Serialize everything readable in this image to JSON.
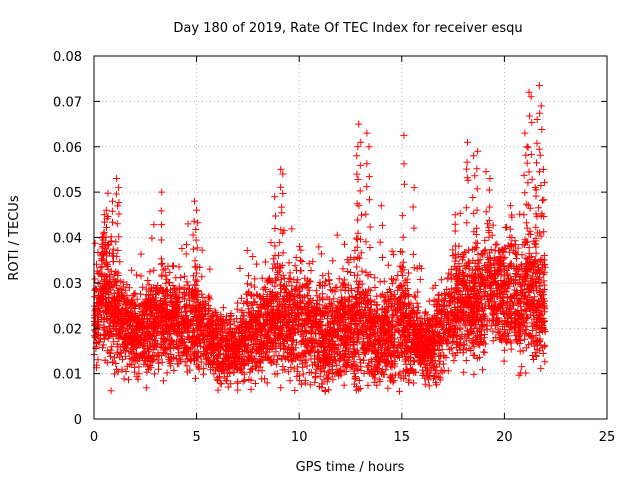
{
  "chart_data": {
    "type": "scatter",
    "title": "Day 180 of 2019, Rate Of TEC Index for receiver esqu",
    "xlabel": "GPS time / hours",
    "ylabel": "ROTI / TECUs",
    "xlim": [
      0,
      25
    ],
    "ylim": [
      0,
      0.08
    ],
    "xticks": [
      0,
      5,
      10,
      15,
      20,
      25
    ],
    "yticks": [
      0,
      0.01,
      0.02,
      0.03,
      0.04,
      0.05,
      0.06,
      0.07,
      0.08
    ],
    "xtick_labels": [
      "0",
      "5",
      "10",
      "15",
      "20",
      "25"
    ],
    "ytick_labels": [
      "0",
      "0.01",
      "0.02",
      "0.03",
      "0.04",
      "0.05",
      "0.06",
      "0.07",
      "0.08"
    ],
    "grid": true,
    "marker": "+",
    "series_color": "#ff0000",
    "data_range_hours": [
      0,
      22
    ],
    "envelope": {
      "hours": [
        0,
        0.5,
        1,
        1.5,
        2,
        2.5,
        3,
        3.5,
        4,
        4.5,
        5,
        5.5,
        6,
        6.5,
        7,
        7.5,
        8,
        8.5,
        9,
        9.5,
        10,
        10.5,
        11,
        11.5,
        12,
        12.5,
        13,
        13.5,
        14,
        14.5,
        15,
        15.5,
        16,
        16.5,
        17,
        17.5,
        18,
        18.5,
        19,
        19.5,
        20,
        20.5,
        21,
        21.5,
        22
      ],
      "center": [
        0.022,
        0.026,
        0.025,
        0.02,
        0.019,
        0.02,
        0.021,
        0.022,
        0.021,
        0.02,
        0.021,
        0.018,
        0.016,
        0.015,
        0.016,
        0.018,
        0.02,
        0.021,
        0.022,
        0.02,
        0.021,
        0.019,
        0.018,
        0.018,
        0.019,
        0.02,
        0.021,
        0.018,
        0.017,
        0.019,
        0.021,
        0.018,
        0.016,
        0.017,
        0.02,
        0.024,
        0.026,
        0.025,
        0.027,
        0.027,
        0.027,
        0.025,
        0.026,
        0.026,
        0.025
      ],
      "spread": [
        0.006,
        0.009,
        0.009,
        0.006,
        0.006,
        0.006,
        0.007,
        0.007,
        0.006,
        0.006,
        0.007,
        0.006,
        0.005,
        0.005,
        0.005,
        0.006,
        0.007,
        0.007,
        0.008,
        0.007,
        0.008,
        0.007,
        0.007,
        0.007,
        0.007,
        0.008,
        0.009,
        0.007,
        0.006,
        0.007,
        0.008,
        0.006,
        0.005,
        0.005,
        0.007,
        0.007,
        0.008,
        0.008,
        0.008,
        0.007,
        0.008,
        0.008,
        0.009,
        0.009,
        0.008
      ]
    },
    "point_count": 5200,
    "outliers": [
      {
        "x": 0.5,
        "y": 0.045
      },
      {
        "x": 0.6,
        "y": 0.046
      },
      {
        "x": 0.9,
        "y": 0.048
      },
      {
        "x": 1.1,
        "y": 0.053
      },
      {
        "x": 1.2,
        "y": 0.051
      },
      {
        "x": 3.3,
        "y": 0.05
      },
      {
        "x": 4.9,
        "y": 0.048
      },
      {
        "x": 5.0,
        "y": 0.046
      },
      {
        "x": 9.1,
        "y": 0.055
      },
      {
        "x": 9.2,
        "y": 0.054
      },
      {
        "x": 12.9,
        "y": 0.065
      },
      {
        "x": 13.0,
        "y": 0.061
      },
      {
        "x": 13.3,
        "y": 0.063
      },
      {
        "x": 13.4,
        "y": 0.06
      },
      {
        "x": 12.8,
        "y": 0.058
      },
      {
        "x": 15.1,
        "y": 0.0625
      },
      {
        "x": 15.6,
        "y": 0.051
      },
      {
        "x": 18.2,
        "y": 0.061
      },
      {
        "x": 18.5,
        "y": 0.058
      },
      {
        "x": 18.7,
        "y": 0.059
      },
      {
        "x": 19.3,
        "y": 0.053
      },
      {
        "x": 20.3,
        "y": 0.047
      },
      {
        "x": 21.0,
        "y": 0.063
      },
      {
        "x": 21.1,
        "y": 0.06
      },
      {
        "x": 21.2,
        "y": 0.072
      },
      {
        "x": 21.3,
        "y": 0.071
      },
      {
        "x": 21.6,
        "y": 0.066
      },
      {
        "x": 21.7,
        "y": 0.0735
      },
      {
        "x": 21.8,
        "y": 0.069
      },
      {
        "x": 21.9,
        "y": 0.055
      },
      {
        "x": 21.5,
        "y": 0.051
      },
      {
        "x": 8.8,
        "y": 0.049
      },
      {
        "x": 14.0,
        "y": 0.047
      },
      {
        "x": 17.6,
        "y": 0.045
      }
    ]
  }
}
